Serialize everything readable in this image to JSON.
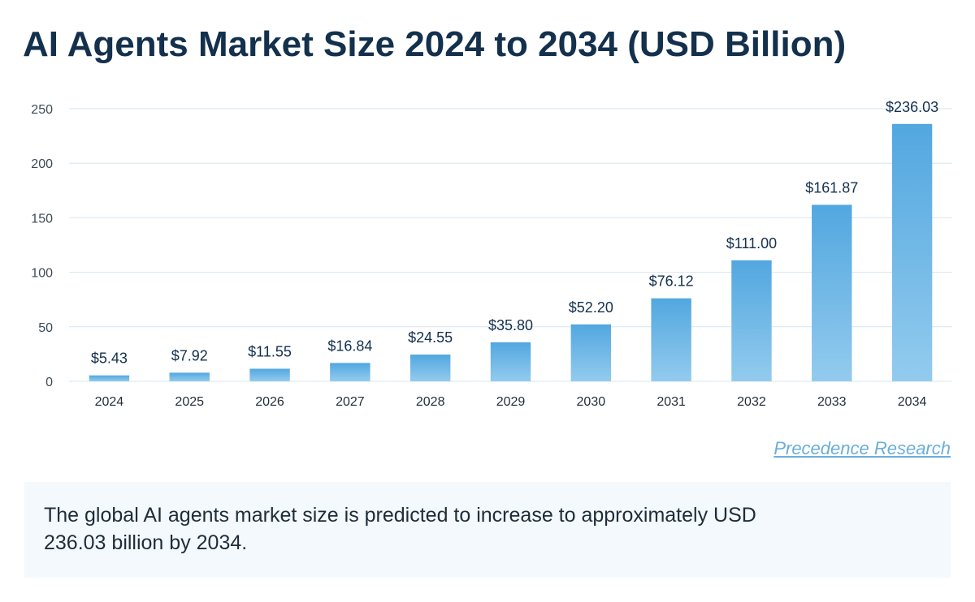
{
  "title": "AI Agents Market Size 2024 to 2034 (USD Billion)",
  "source": "Precedence Research",
  "summary": "The global AI agents market size is predicted to increase to approximately USD 236.03 billion by 2034.",
  "colors": {
    "title": "#13304d",
    "bar_top": "#52a7e0",
    "bar_bottom": "#93cbee",
    "grid": "#d6e6f0",
    "source": "#6aaedb",
    "summary_bg": "#f3f9fd"
  },
  "chart_data": {
    "type": "bar",
    "title": "AI Agents Market Size 2024 to 2034 (USD Billion)",
    "xlabel": "",
    "ylabel": "",
    "categories": [
      "2024",
      "2025",
      "2026",
      "2027",
      "2028",
      "2029",
      "2030",
      "2031",
      "2032",
      "2033",
      "2034"
    ],
    "values": [
      5.43,
      7.92,
      11.55,
      16.84,
      24.55,
      35.8,
      52.2,
      76.12,
      111.0,
      161.87,
      236.03
    ],
    "bar_values": [
      5.43,
      7.92,
      11.55,
      16.84,
      24.55,
      35.8,
      52.2,
      76.12,
      111.0,
      161.87,
      236.03
    ],
    "data_labels": [
      "$5.43",
      "$7.92",
      "$11.55",
      "$16.84",
      "$24.55",
      "$35.80",
      "$52.20",
      "$76.12",
      "$111.00",
      "$161.87",
      "$236.03"
    ],
    "yticks": [
      0,
      50,
      100,
      150,
      200,
      250
    ],
    "ylim": [
      0,
      250
    ],
    "grid": true
  }
}
